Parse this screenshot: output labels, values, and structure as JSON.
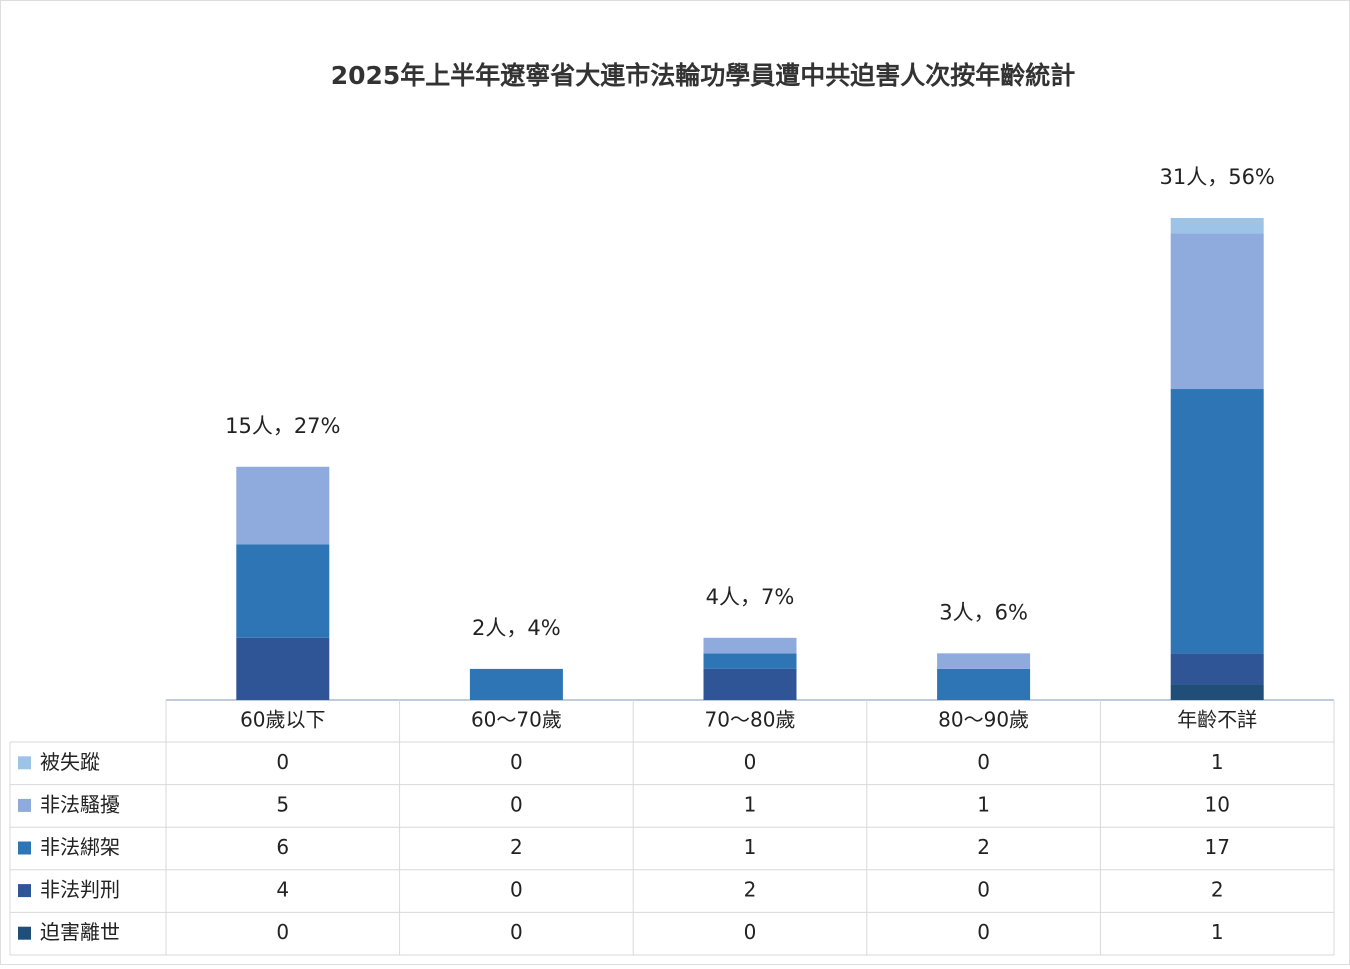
{
  "chart_data": {
    "type": "stacked-bar-table",
    "title": "2025年上半年遼寧省大連市法輪功學員遭中共迫害人次按年齡統計",
    "categories": [
      "60歲以下",
      "60～70歲",
      "70～80歲",
      "80～90歲",
      "年齡不詳"
    ],
    "series": [
      {
        "name": "被失蹤",
        "color": "#9dc3e6",
        "values": [
          0,
          0,
          0,
          0,
          1
        ]
      },
      {
        "name": "非法騷擾",
        "color": "#8faadc",
        "values": [
          5,
          0,
          1,
          1,
          10
        ]
      },
      {
        "name": "非法綁架",
        "color": "#2e75b6",
        "values": [
          6,
          2,
          1,
          2,
          17
        ]
      },
      {
        "name": "非法判刑",
        "color": "#2f5597",
        "values": [
          4,
          0,
          2,
          0,
          2
        ]
      },
      {
        "name": "迫害離世",
        "color": "#1f4e79",
        "values": [
          0,
          0,
          0,
          0,
          1
        ]
      }
    ],
    "totals": {
      "values": [
        15,
        2,
        4,
        3,
        31
      ],
      "value_labels": [
        "15人，27%",
        "2人，4%",
        "4人，7%",
        "3人，6%",
        "31人，56%"
      ]
    },
    "ylim": [
      0,
      31
    ]
  }
}
